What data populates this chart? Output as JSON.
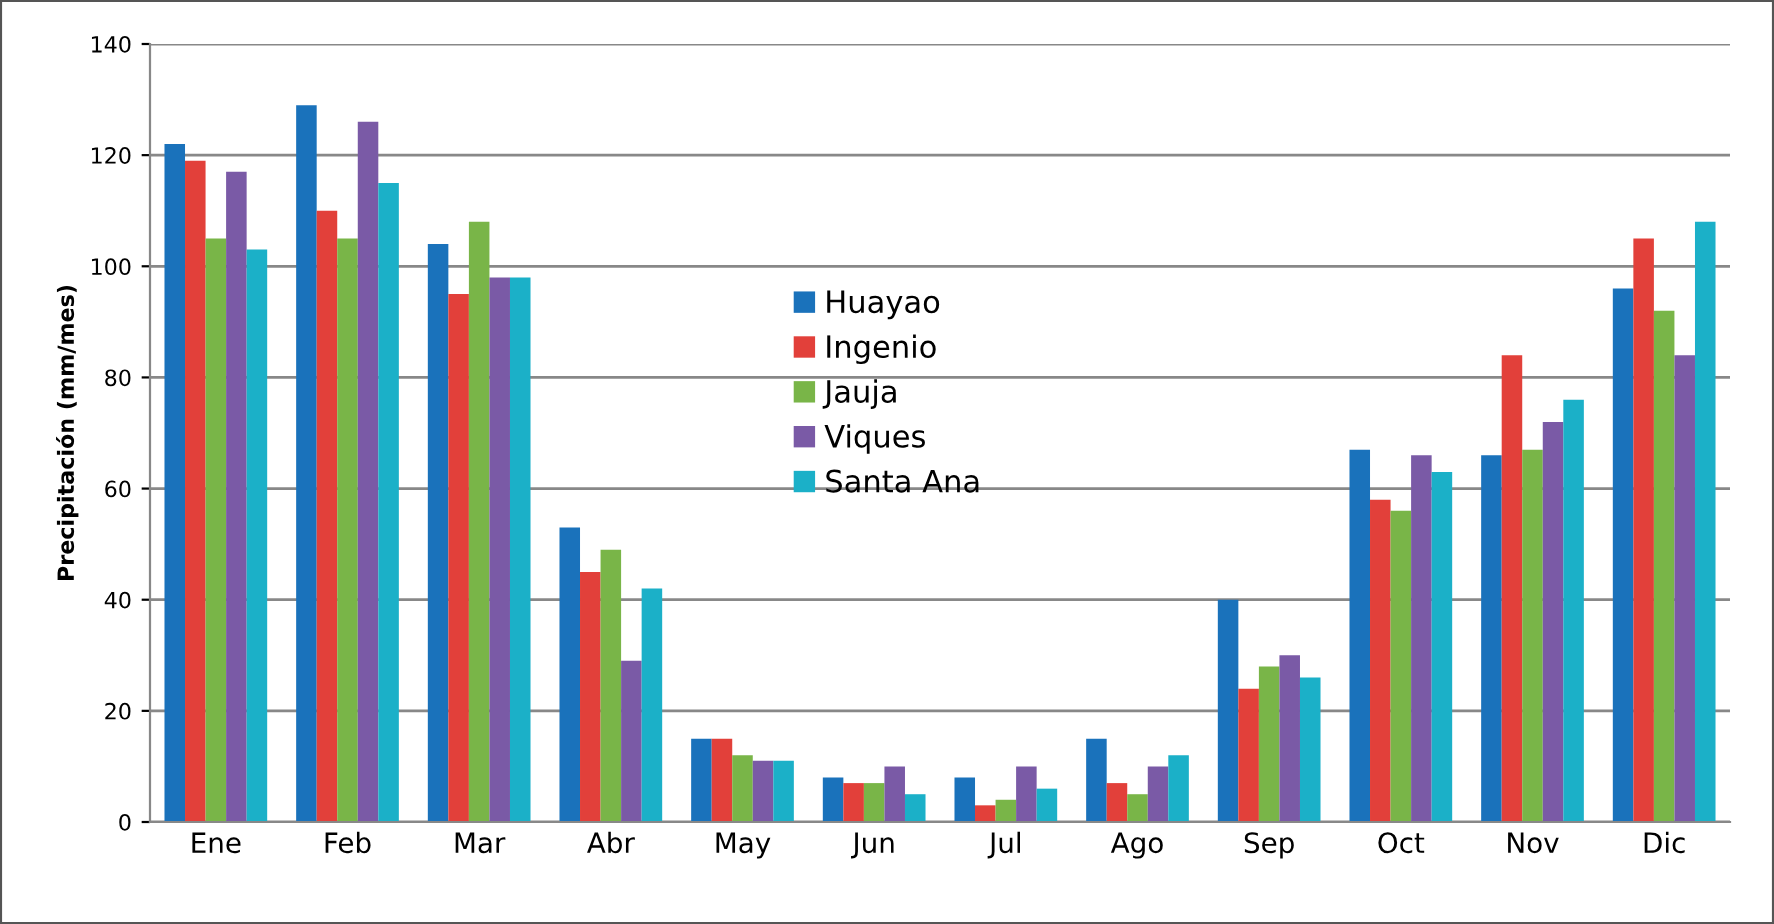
{
  "chart_data": {
    "type": "bar",
    "ylabel": "Precipitación (mm/mes)",
    "categories": [
      "Ene",
      "Feb",
      "Mar",
      "Abr",
      "May",
      "Jun",
      "Jul",
      "Ago",
      "Sep",
      "Oct",
      "Nov",
      "Dic"
    ],
    "series": [
      {
        "name": "Huayao",
        "color": "#1a72bb",
        "values": [
          122,
          129,
          104,
          53,
          15,
          8,
          8,
          15,
          40,
          67,
          66,
          96
        ]
      },
      {
        "name": "Ingenio",
        "color": "#e2403a",
        "values": [
          119,
          110,
          95,
          45,
          15,
          7,
          3,
          7,
          24,
          58,
          84,
          105
        ]
      },
      {
        "name": "Jauja",
        "color": "#79b548",
        "values": [
          105,
          105,
          108,
          49,
          12,
          7,
          4,
          5,
          28,
          56,
          67,
          92
        ]
      },
      {
        "name": "Viques",
        "color": "#7a5aa6",
        "values": [
          117,
          126,
          98,
          29,
          11,
          10,
          10,
          10,
          30,
          66,
          72,
          84
        ]
      },
      {
        "name": "Santa Ana",
        "color": "#1bb0c8",
        "values": [
          103,
          115,
          98,
          42,
          11,
          5,
          6,
          12,
          26,
          63,
          76,
          108
        ]
      }
    ],
    "ylim": [
      0,
      140
    ],
    "yticks": [
      0,
      20,
      40,
      60,
      80,
      100,
      120,
      140
    ],
    "grid": "y",
    "legend": "center"
  }
}
